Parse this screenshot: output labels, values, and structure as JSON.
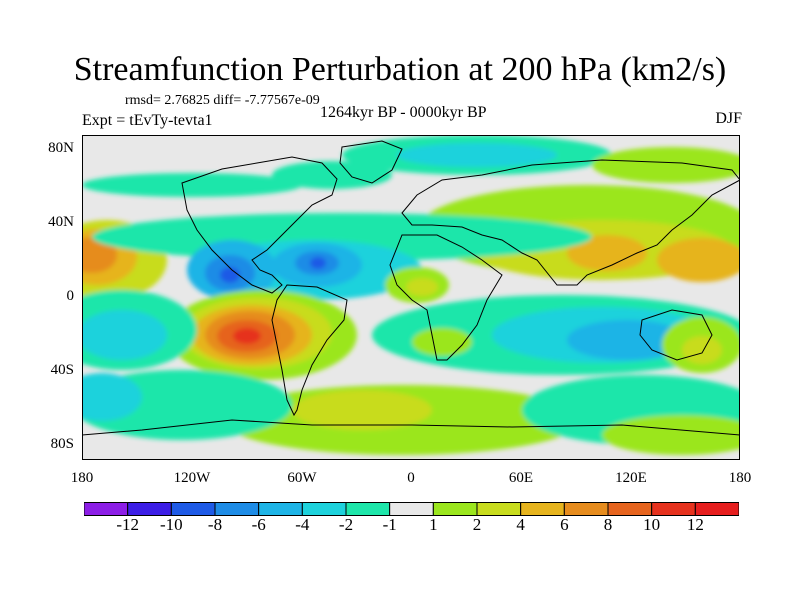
{
  "header": {
    "title": "Streamfunction Perturbation at 200 hPa (km2/s)",
    "stats": "rmsd= 2.76825 diff= -7.77567e-09",
    "experiment": "Expt = tEvTy-tevta1",
    "period": "1264kyr BP - 0000kyr BP",
    "season": "DJF"
  },
  "axes": {
    "y_ticks": [
      "80N",
      "40N",
      "0",
      "40S",
      "80S"
    ],
    "x_ticks": [
      "180",
      "120W",
      "60W",
      "0",
      "60E",
      "120E",
      "180"
    ]
  },
  "colorbar": {
    "colors": [
      "#8c1ee6",
      "#3c1ee6",
      "#1e5ae6",
      "#1e8ce6",
      "#1eb4e6",
      "#1ed2dc",
      "#1ee6aa",
      "#e8e8e8",
      "#9be61e",
      "#c8dc1e",
      "#e6b41e",
      "#e68c1e",
      "#e6641e",
      "#e6321e",
      "#e61e1e"
    ],
    "labels": [
      "-12",
      "-10",
      "-8",
      "-6",
      "-4",
      "-2",
      "-1",
      "1",
      "2",
      "4",
      "6",
      "8",
      "10",
      "12"
    ]
  }
}
